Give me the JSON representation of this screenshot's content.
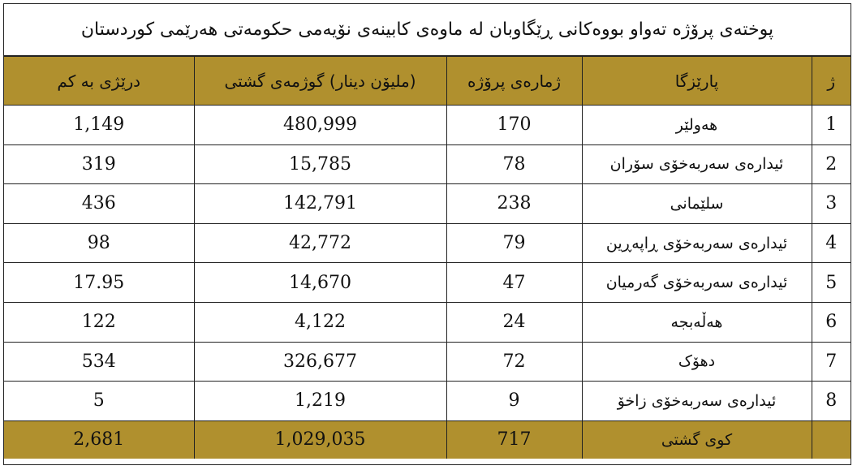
{
  "title": "پوختەی پرۆژە تەواو بووەکانی ڕێگاوبان لە ماوەی کابینەی نۆیەمی حکومەتی هەرێمی کوردستان",
  "headers": {
    "length": "درێژی بە کم",
    "cost": "(ملیۆن دینار) گوژمەی گشتی",
    "projects": "ژمارەی پرۆژە",
    "province": "پارێزگا",
    "number": "ژ"
  },
  "rows": [
    {
      "no": "1",
      "province": "هەولێر",
      "projects": "170",
      "cost": "480,999",
      "length": "1,149"
    },
    {
      "no": "2",
      "province": "ئیدارەی سەربەخۆی سۆران",
      "projects": "78",
      "cost": "15,785",
      "length": "319"
    },
    {
      "no": "3",
      "province": "سلێمانی",
      "projects": "238",
      "cost": "142,791",
      "length": "436"
    },
    {
      "no": "4",
      "province": "ئیدارەی سەربەخۆی ڕاپەڕین",
      "projects": "79",
      "cost": "42,772",
      "length": "98"
    },
    {
      "no": "5",
      "province": "ئیدارەی  سەربەخۆی  گەرمیان",
      "projects": "47",
      "cost": "14,670",
      "length": "17.95"
    },
    {
      "no": "6",
      "province": "هەڵەبجە",
      "projects": "24",
      "cost": "4,122",
      "length": "122"
    },
    {
      "no": "7",
      "province": "دهۆک",
      "projects": "72",
      "cost": "326,677",
      "length": "534"
    },
    {
      "no": "8",
      "province": "ئیدارەی سەربەخۆی  زاخۆ",
      "projects": "9",
      "cost": "1,219",
      "length": "5"
    }
  ],
  "total": {
    "label": "کوی گشتی",
    "projects": "717",
    "cost": "1,029,035",
    "length": "2,681"
  },
  "colors": {
    "header_bg": "#b0902e",
    "border": "#222222"
  }
}
